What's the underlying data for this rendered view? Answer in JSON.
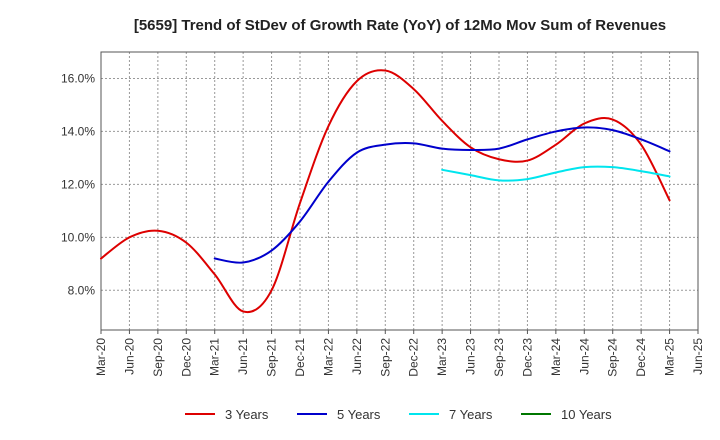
{
  "chart_data": {
    "type": "line",
    "title": "[5659]  Trend of StDev of Growth Rate (YoY) of 12Mo Mov Sum of Revenues",
    "xlabel": "",
    "ylabel": "",
    "categories": [
      "Mar-20",
      "Jun-20",
      "Sep-20",
      "Dec-20",
      "Mar-21",
      "Jun-21",
      "Sep-21",
      "Dec-21",
      "Mar-22",
      "Jun-22",
      "Sep-22",
      "Dec-22",
      "Mar-23",
      "Jun-23",
      "Sep-23",
      "Dec-23",
      "Mar-24",
      "Jun-24",
      "Sep-24",
      "Dec-24",
      "Mar-25",
      "Jun-25"
    ],
    "y_ticks": [
      8.0,
      10.0,
      12.0,
      14.0,
      16.0
    ],
    "y_tick_labels": [
      "8.0%",
      "10.0%",
      "12.0%",
      "14.0%",
      "16.0%"
    ],
    "ylim": [
      6.5,
      17.0
    ],
    "legend_position": "bottom",
    "grid": true,
    "series": [
      {
        "name": "3 Years",
        "color": "#dd0000",
        "values": [
          9.2,
          10.0,
          10.25,
          9.8,
          8.6,
          7.2,
          8.0,
          11.3,
          14.2,
          15.9,
          16.3,
          15.6,
          14.4,
          13.4,
          12.95,
          12.9,
          13.5,
          14.3,
          14.45,
          13.5,
          11.4,
          null
        ]
      },
      {
        "name": "5 Years",
        "color": "#0000cc",
        "values": [
          null,
          null,
          null,
          null,
          9.2,
          9.05,
          9.5,
          10.6,
          12.1,
          13.2,
          13.5,
          13.55,
          13.35,
          13.3,
          13.35,
          13.7,
          14.0,
          14.15,
          14.05,
          13.7,
          13.25,
          null
        ]
      },
      {
        "name": "7 Years",
        "color": "#00e5ee",
        "values": [
          null,
          null,
          null,
          null,
          null,
          null,
          null,
          null,
          null,
          null,
          null,
          null,
          12.55,
          12.35,
          12.15,
          12.2,
          12.45,
          12.65,
          12.65,
          12.5,
          12.3,
          null
        ]
      },
      {
        "name": "10 Years",
        "color": "#007700",
        "values": [
          null,
          null,
          null,
          null,
          null,
          null,
          null,
          null,
          null,
          null,
          null,
          null,
          null,
          null,
          null,
          null,
          null,
          null,
          null,
          null,
          null,
          null
        ]
      }
    ]
  }
}
